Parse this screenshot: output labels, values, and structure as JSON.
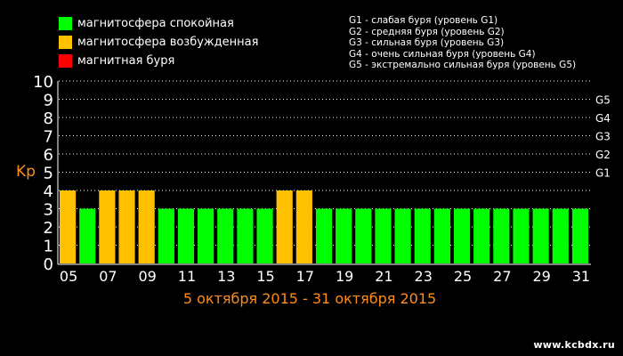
{
  "legend": [
    {
      "label": "магнитосфера спокойная",
      "color": "#00ff00"
    },
    {
      "label": "магнитосфера возбужденная",
      "color": "#ffc000"
    },
    {
      "label": "магнитная буря",
      "color": "#ff0000"
    }
  ],
  "storm_levels": [
    "G1 - слабая буря (уровень G1)",
    "G2 - средняя буря (уровень G2)",
    "G3 - сильная буря (уровень G3)",
    "G4 - очень сильная буря (уровень G4)",
    "G5 - экстремально сильная буря (уровень G5)"
  ],
  "watermark": "www.kcbdx.ru",
  "colors": {
    "quiet": "#00ff00",
    "excited": "#ffc000",
    "storm": "#ff0000",
    "accent": "#ff8c1a",
    "grid": "#ffffff"
  },
  "chart_data": {
    "type": "bar",
    "xlabel": "5 октября 2015 - 31 октября 2015",
    "ylabel": "Kp",
    "ylim": [
      0,
      10
    ],
    "y_ticks": [
      0,
      1,
      2,
      3,
      4,
      5,
      6,
      7,
      8,
      9,
      10
    ],
    "g_ticks": [
      {
        "label": "G1",
        "kp": 5
      },
      {
        "label": "G2",
        "kp": 6
      },
      {
        "label": "G3",
        "kp": 7
      },
      {
        "label": "G4",
        "kp": 8
      },
      {
        "label": "G5",
        "kp": 9
      }
    ],
    "x_tick_labels": [
      "05",
      "07",
      "09",
      "11",
      "13",
      "15",
      "17",
      "19",
      "21",
      "23",
      "25",
      "27",
      "29",
      "31"
    ],
    "categories": [
      "05",
      "06",
      "07",
      "08",
      "09",
      "10",
      "11",
      "12",
      "13",
      "14",
      "15",
      "16",
      "17",
      "18",
      "19",
      "20",
      "21",
      "22",
      "23",
      "24",
      "25",
      "26",
      "27",
      "28",
      "29",
      "30",
      "31"
    ],
    "values": [
      4,
      3,
      4,
      4,
      4,
      3,
      3,
      3,
      3,
      3,
      3,
      4,
      4,
      3,
      3,
      3,
      3,
      3,
      3,
      3,
      3,
      3,
      3,
      3,
      3,
      3,
      3
    ],
    "grid": true
  }
}
